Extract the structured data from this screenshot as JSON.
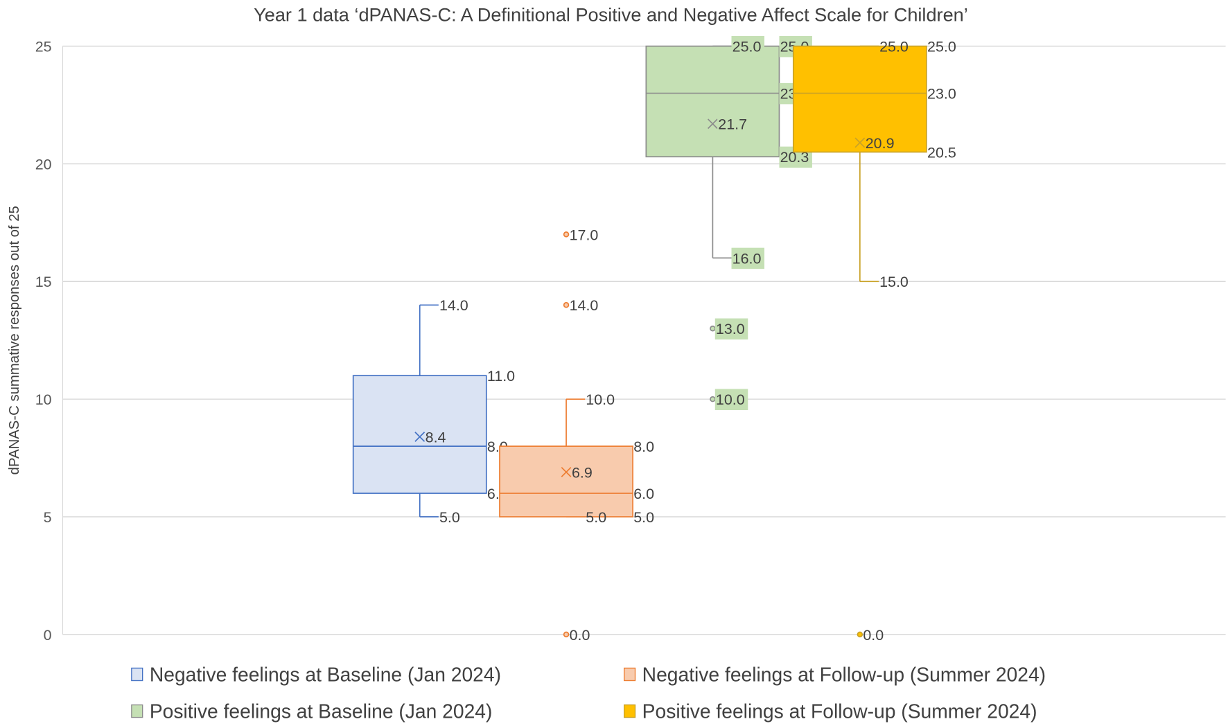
{
  "chart_data": {
    "type": "box",
    "title": "Year 1 data ‘dPANAS-C: A Definitional Positive and Negative Affect Scale for Children’",
    "xlabel": "",
    "ylabel": "dPANAS-C summative responses  out of 25",
    "ylim": [
      0,
      25
    ],
    "yticks": [
      0,
      5,
      10,
      15,
      20,
      25
    ],
    "grid": true,
    "legend_position": "bottom",
    "series": [
      {
        "name": "Negative feelings at Baseline (Jan 2024)",
        "fill": "#dae3f3",
        "stroke": "#4472c4",
        "min": 5,
        "q1": 6,
        "median": 8,
        "q3": 11,
        "max": 14,
        "mean": 8.4,
        "outliers": [],
        "label_bg": ""
      },
      {
        "name": "Negative feelings at Follow-up (Summer 2024)",
        "fill": "#f8cbad",
        "stroke": "#ed7d31",
        "min": 5,
        "q1": 5,
        "median": 6,
        "q3": 8,
        "max": 10,
        "mean": 6.9,
        "outliers": [
          17,
          14,
          0
        ],
        "label_bg": ""
      },
      {
        "name": "Positive feelings at Baseline (Jan 2024)",
        "fill": "#c5e0b4",
        "stroke": "#8c8c8c",
        "min": 16,
        "q1": 20.3,
        "median": 23,
        "q3": 25,
        "max": 25,
        "mean": 21.7,
        "outliers": [
          13,
          10
        ],
        "label_bg": "#c5e0b4"
      },
      {
        "name": "Positive feelings at Follow-up (Summer 2024)",
        "fill": "#ffc000",
        "stroke": "#c9a227",
        "min": 15,
        "q1": 20.5,
        "median": 23,
        "q3": 25,
        "max": 25,
        "mean": 20.9,
        "outliers": [
          0
        ],
        "label_bg": ""
      }
    ]
  }
}
